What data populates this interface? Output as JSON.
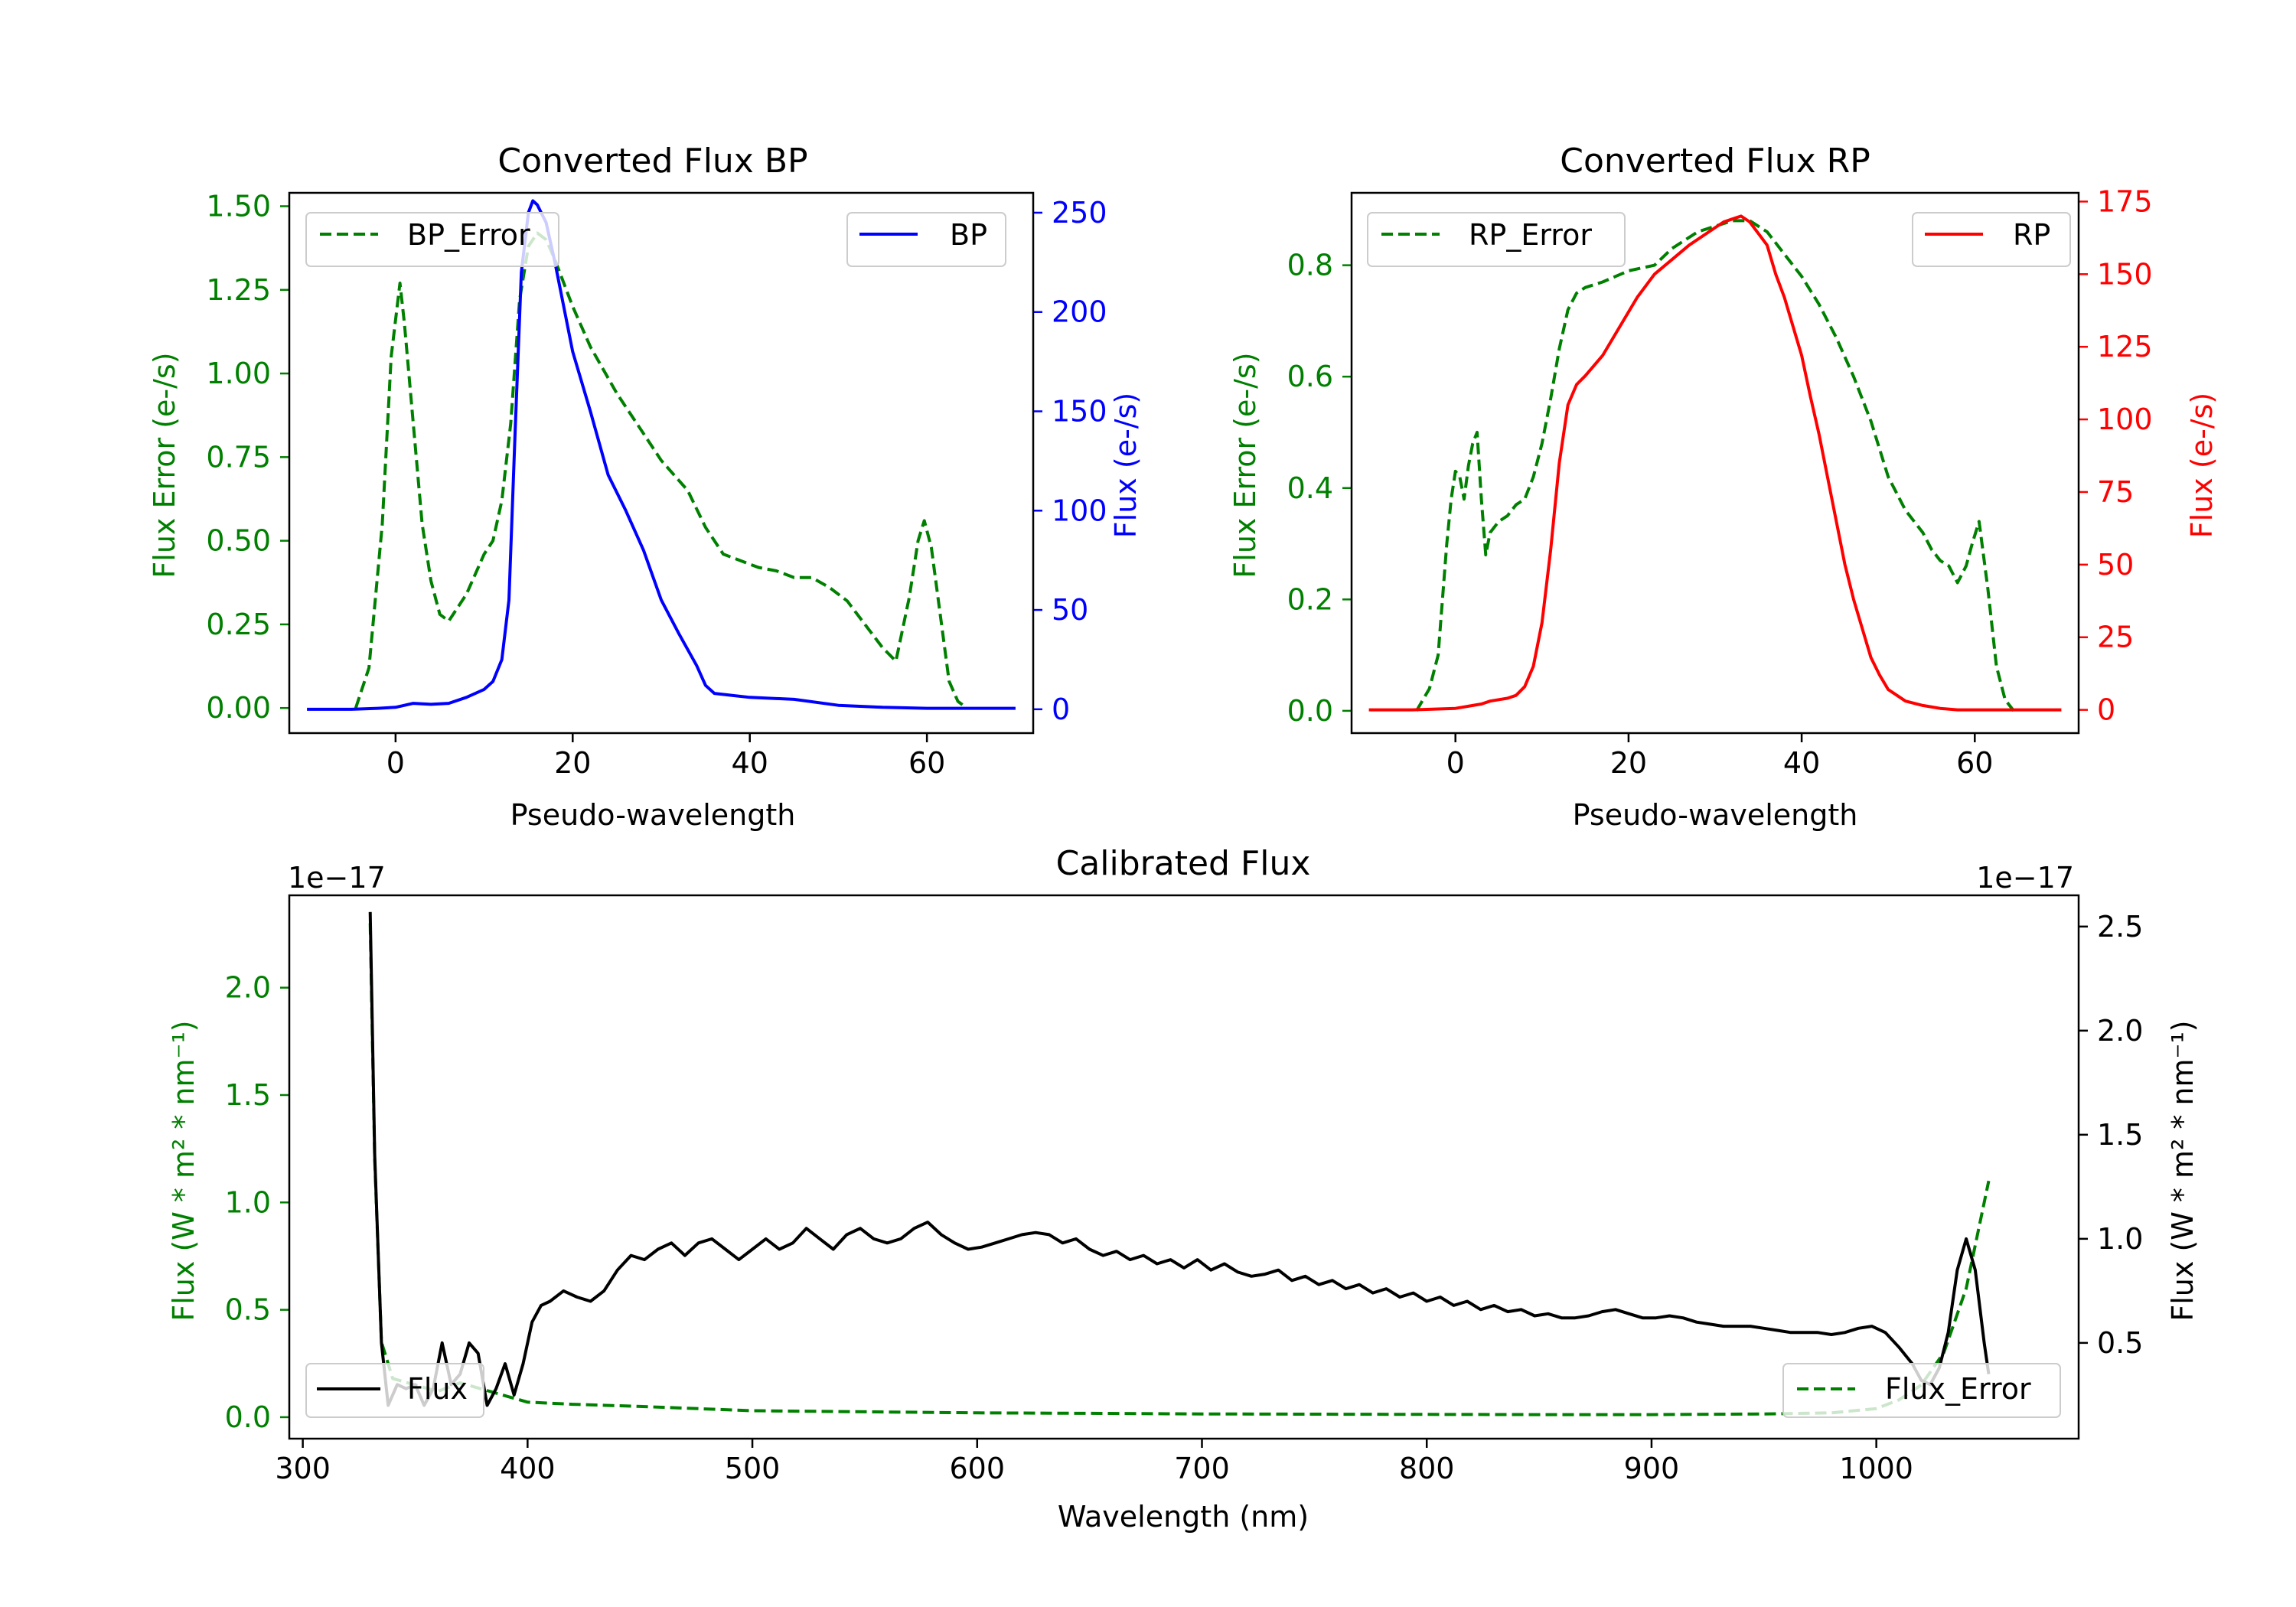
{
  "colors": {
    "green": "#008000",
    "blue": "#0000ff",
    "red": "#ff0000",
    "black": "#000000"
  },
  "chart_data": [
    {
      "type": "line",
      "title": "Converted Flux BP",
      "xlabel": "Pseudo-wavelength",
      "ylabel_left": "Flux Error (e-/s)",
      "ylabel_right": "Flux (e-/s)",
      "xlim": [
        -12,
        72
      ],
      "ylim_left": [
        -0.075,
        1.54
      ],
      "ylim_right": [
        -12,
        260
      ],
      "xticks": [
        "0",
        "20",
        "40",
        "60"
      ],
      "yticks_left": [
        "0.00",
        "0.25",
        "0.50",
        "0.75",
        "1.00",
        "1.25",
        "1.50"
      ],
      "yticks_right": [
        "0",
        "50",
        "100",
        "150",
        "200",
        "250"
      ],
      "legend_left": "BP_Error",
      "legend_right": "BP",
      "series": [
        {
          "name": "BP_Error",
          "axis": "left",
          "style": "dashed",
          "color": "#008000",
          "x": [
            -4.5,
            -3,
            -1.5,
            -0.5,
            0.5,
            1,
            2,
            3,
            4,
            5,
            6,
            8,
            10,
            11,
            12,
            13,
            14,
            15,
            15.5,
            16,
            17,
            18,
            20,
            22,
            25,
            28,
            30,
            33,
            35,
            37,
            39,
            41,
            43,
            45,
            47,
            49,
            51,
            53,
            55,
            56.5,
            58,
            59,
            59.7,
            60.5,
            61.5,
            62.5,
            63.5,
            64.5
          ],
          "y": [
            0.0,
            0.12,
            0.55,
            1.05,
            1.27,
            1.15,
            0.85,
            0.55,
            0.38,
            0.28,
            0.26,
            0.34,
            0.46,
            0.5,
            0.62,
            0.85,
            1.22,
            1.38,
            1.4,
            1.42,
            1.4,
            1.34,
            1.2,
            1.08,
            0.94,
            0.82,
            0.74,
            0.65,
            0.54,
            0.46,
            0.44,
            0.42,
            0.41,
            0.39,
            0.39,
            0.36,
            0.32,
            0.25,
            0.18,
            0.14,
            0.33,
            0.5,
            0.56,
            0.48,
            0.28,
            0.08,
            0.02,
            0.0
          ]
        },
        {
          "name": "BP",
          "axis": "right",
          "style": "solid",
          "color": "#0000ff",
          "x": [
            -10,
            -5,
            -2,
            0,
            2,
            4,
            6,
            8,
            10,
            11,
            12,
            12.8,
            13.5,
            14.2,
            15,
            15.5,
            16,
            17,
            18,
            20,
            22,
            24,
            26,
            28,
            30,
            32,
            34,
            35,
            36,
            38,
            40,
            45,
            50,
            55,
            60,
            65,
            70
          ],
          "y": [
            0,
            0,
            0.5,
            1,
            3,
            2.5,
            3,
            6,
            10,
            14,
            25,
            55,
            140,
            220,
            250,
            256,
            254,
            245,
            225,
            180,
            150,
            118,
            100,
            80,
            55,
            38,
            22,
            12,
            8,
            7,
            6,
            5,
            2,
            1,
            0.5,
            0.5,
            0.5
          ]
        }
      ]
    },
    {
      "type": "line",
      "title": "Converted Flux RP",
      "xlabel": "Pseudo-wavelength",
      "ylabel_left": "Flux Error (e-/s)",
      "ylabel_right": "Flux (e-/s)",
      "xlim": [
        -12,
        72
      ],
      "ylim_left": [
        -0.04,
        0.93
      ],
      "ylim_right": [
        -8,
        178
      ],
      "xticks": [
        "0",
        "20",
        "40",
        "60"
      ],
      "yticks_left": [
        "0.0",
        "0.2",
        "0.4",
        "0.6",
        "0.8"
      ],
      "yticks_right": [
        "0",
        "25",
        "50",
        "75",
        "100",
        "125",
        "150",
        "175"
      ],
      "legend_left": "RP_Error",
      "legend_right": "RP",
      "series": [
        {
          "name": "RP_Error",
          "axis": "left",
          "style": "dashed",
          "color": "#008000",
          "x": [
            -4.5,
            -3,
            -2,
            -1,
            -0.5,
            0,
            0.5,
            1,
            1.5,
            2,
            2.5,
            3,
            3.5,
            4,
            5,
            6,
            7,
            8,
            9,
            10,
            11,
            12,
            13,
            14,
            15,
            17,
            20,
            23,
            25,
            28,
            30,
            32,
            34,
            36,
            38,
            40,
            42,
            44,
            46,
            48,
            50,
            52,
            54,
            55,
            56,
            57,
            58,
            59,
            59.7,
            60.5,
            61.5,
            62.5,
            63.5,
            64.5
          ],
          "y": [
            0.0,
            0.04,
            0.1,
            0.3,
            0.38,
            0.43,
            0.42,
            0.38,
            0.44,
            0.48,
            0.5,
            0.38,
            0.28,
            0.32,
            0.34,
            0.35,
            0.37,
            0.38,
            0.42,
            0.48,
            0.56,
            0.65,
            0.72,
            0.75,
            0.76,
            0.77,
            0.79,
            0.8,
            0.83,
            0.86,
            0.87,
            0.88,
            0.88,
            0.86,
            0.82,
            0.78,
            0.73,
            0.67,
            0.6,
            0.52,
            0.42,
            0.36,
            0.32,
            0.29,
            0.27,
            0.26,
            0.23,
            0.26,
            0.3,
            0.34,
            0.22,
            0.08,
            0.02,
            0.0
          ]
        },
        {
          "name": "RP",
          "axis": "right",
          "style": "solid",
          "color": "#ff0000",
          "x": [
            -10,
            -5,
            0,
            1,
            2,
            3,
            4,
            5,
            6,
            7,
            8,
            9,
            10,
            11,
            12,
            13,
            14,
            15,
            17,
            19,
            21,
            23,
            25,
            27,
            29,
            30,
            31,
            32,
            33,
            34,
            35,
            36,
            37,
            38,
            39,
            40,
            41,
            42,
            43,
            44,
            45,
            46,
            47,
            48,
            49,
            50,
            52,
            54,
            56,
            58,
            60,
            62,
            64,
            66,
            68,
            70
          ],
          "y": [
            0,
            0,
            0.5,
            1,
            1.5,
            2,
            3,
            3.5,
            4,
            5,
            8,
            15,
            30,
            55,
            85,
            105,
            112,
            115,
            122,
            132,
            142,
            150,
            155,
            160,
            164,
            166,
            168,
            169,
            170,
            168,
            164,
            160,
            150,
            142,
            132,
            122,
            108,
            95,
            80,
            65,
            50,
            38,
            28,
            18,
            12,
            7,
            3,
            1.5,
            0.5,
            0,
            0,
            0,
            0,
            0,
            0,
            0
          ]
        }
      ]
    },
    {
      "type": "line",
      "title": "Calibrated Flux",
      "xlabel": "Wavelength (nm)",
      "ylabel_left": "Flux (W * m² * nm⁻¹)",
      "ylabel_right": "Flux (W * m² * nm⁻¹)",
      "offset_left": "1e−17",
      "offset_right": "1e−17",
      "xlim": [
        294,
        1090
      ],
      "ylim_left": [
        -0.1,
        2.43
      ],
      "ylim_right": [
        0.04,
        2.65
      ],
      "xticks": [
        "300",
        "400",
        "500",
        "600",
        "700",
        "800",
        "900",
        "1000"
      ],
      "yticks_left": [
        "0.0",
        "0.5",
        "1.0",
        "1.5",
        "2.0"
      ],
      "yticks_right": [
        "0.5",
        "1.0",
        "1.5",
        "2.0",
        "2.5"
      ],
      "legend_left": "Flux",
      "legend_right": "Flux_Error",
      "series": [
        {
          "name": "Flux_Error",
          "axis": "left",
          "style": "dashed",
          "color": "#008000",
          "x": [
            330,
            332,
            335,
            340,
            350,
            360,
            370,
            380,
            390,
            400,
            420,
            450,
            500,
            550,
            600,
            650,
            700,
            750,
            800,
            850,
            900,
            950,
            980,
            1000,
            1010,
            1020,
            1030,
            1035,
            1040,
            1045,
            1050
          ],
          "y": [
            2.3,
            1.2,
            0.35,
            0.18,
            0.15,
            0.12,
            0.16,
            0.13,
            0.1,
            0.07,
            0.06,
            0.05,
            0.03,
            0.025,
            0.02,
            0.018,
            0.015,
            0.014,
            0.013,
            0.012,
            0.012,
            0.015,
            0.02,
            0.04,
            0.08,
            0.15,
            0.3,
            0.45,
            0.6,
            0.85,
            1.1
          ]
        },
        {
          "name": "Flux",
          "axis": "right",
          "style": "solid",
          "color": "#000000",
          "x": [
            330,
            332,
            335,
            338,
            342,
            346,
            350,
            354,
            358,
            362,
            366,
            370,
            374,
            378,
            382,
            386,
            390,
            394,
            398,
            402,
            406,
            410,
            416,
            422,
            428,
            434,
            440,
            446,
            452,
            458,
            464,
            470,
            476,
            482,
            488,
            494,
            500,
            506,
            512,
            518,
            524,
            530,
            536,
            542,
            548,
            554,
            560,
            566,
            572,
            578,
            584,
            590,
            596,
            602,
            608,
            614,
            620,
            626,
            632,
            638,
            644,
            650,
            656,
            662,
            668,
            674,
            680,
            686,
            692,
            698,
            704,
            710,
            716,
            722,
            728,
            734,
            740,
            746,
            752,
            758,
            764,
            770,
            776,
            782,
            788,
            794,
            800,
            806,
            812,
            818,
            824,
            830,
            836,
            842,
            848,
            854,
            860,
            866,
            872,
            878,
            884,
            890,
            896,
            902,
            908,
            914,
            920,
            926,
            932,
            938,
            944,
            950,
            956,
            962,
            968,
            974,
            980,
            986,
            992,
            998,
            1004,
            1010,
            1016,
            1020,
            1024,
            1028,
            1032,
            1036,
            1040,
            1044,
            1048,
            1050
          ],
          "y": [
            2.57,
            1.4,
            0.5,
            0.2,
            0.3,
            0.28,
            0.3,
            0.2,
            0.28,
            0.5,
            0.3,
            0.35,
            0.5,
            0.45,
            0.2,
            0.28,
            0.4,
            0.25,
            0.4,
            0.6,
            0.68,
            0.7,
            0.75,
            0.72,
            0.7,
            0.75,
            0.85,
            0.92,
            0.9,
            0.95,
            0.98,
            0.92,
            0.98,
            1.0,
            0.95,
            0.9,
            0.95,
            1.0,
            0.95,
            0.98,
            1.05,
            1.0,
            0.95,
            1.02,
            1.05,
            1.0,
            0.98,
            1.0,
            1.05,
            1.08,
            1.02,
            0.98,
            0.95,
            0.96,
            0.98,
            1.0,
            1.02,
            1.03,
            1.02,
            0.98,
            1.0,
            0.95,
            0.92,
            0.94,
            0.9,
            0.92,
            0.88,
            0.9,
            0.86,
            0.9,
            0.85,
            0.88,
            0.84,
            0.82,
            0.83,
            0.85,
            0.8,
            0.82,
            0.78,
            0.8,
            0.76,
            0.78,
            0.74,
            0.76,
            0.72,
            0.74,
            0.7,
            0.72,
            0.68,
            0.7,
            0.66,
            0.68,
            0.65,
            0.66,
            0.63,
            0.64,
            0.62,
            0.62,
            0.63,
            0.65,
            0.66,
            0.64,
            0.62,
            0.62,
            0.63,
            0.62,
            0.6,
            0.59,
            0.58,
            0.58,
            0.58,
            0.57,
            0.56,
            0.55,
            0.55,
            0.55,
            0.54,
            0.55,
            0.57,
            0.58,
            0.55,
            0.48,
            0.4,
            0.32,
            0.3,
            0.38,
            0.55,
            0.85,
            1.0,
            0.85,
            0.5,
            0.35
          ]
        }
      ]
    }
  ]
}
